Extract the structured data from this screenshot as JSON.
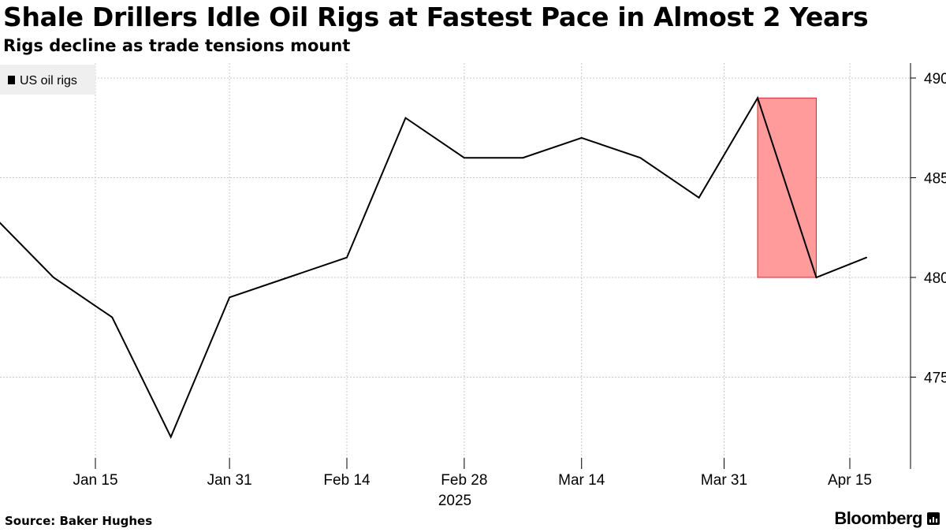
{
  "header": {
    "title": "Shale Drillers Idle Oil Rigs at Fastest Pace in Almost 2 Years",
    "subtitle": "Rigs decline as trade tensions mount"
  },
  "footer": {
    "source": "Source: Baker Hughes",
    "brand": "Bloomberg"
  },
  "chart_data": {
    "type": "line",
    "title": "Shale Drillers Idle Oil Rigs at Fastest Pace in Almost 2 Years",
    "subtitle": "Rigs decline as trade tensions mount",
    "xlabel": "2025",
    "ylabel": "",
    "x_range": [
      "2025-01-07",
      "2025-04-20"
    ],
    "ylim": [
      470.5,
      490.5
    ],
    "y_axis_side": "right",
    "grid": true,
    "legend": {
      "position": "top-left",
      "entries": [
        "US oil rigs"
      ]
    },
    "x_ticks": [
      {
        "date": "2025-01-15",
        "label": "Jan 15"
      },
      {
        "date": "2025-01-31",
        "label": "Jan 31"
      },
      {
        "date": "2025-02-14",
        "label": "Feb 14"
      },
      {
        "date": "2025-02-28",
        "label": "Feb 28"
      },
      {
        "date": "2025-03-14",
        "label": "Mar 14"
      },
      {
        "date": "2025-03-31",
        "label": "Mar 31"
      },
      {
        "date": "2025-04-15",
        "label": "Apr 15"
      }
    ],
    "y_ticks": [
      475,
      480,
      485,
      490
    ],
    "series": [
      {
        "name": "US oil rigs",
        "color": "#000000",
        "points": [
          {
            "x": "2025-01-03",
            "y": 483
          },
          {
            "x": "2025-01-10",
            "y": 480
          },
          {
            "x": "2025-01-17",
            "y": 478
          },
          {
            "x": "2025-01-24",
            "y": 472
          },
          {
            "x": "2025-01-31",
            "y": 479
          },
          {
            "x": "2025-02-07",
            "y": 480
          },
          {
            "x": "2025-02-14",
            "y": 481
          },
          {
            "x": "2025-02-21",
            "y": 488
          },
          {
            "x": "2025-02-28",
            "y": 486
          },
          {
            "x": "2025-03-07",
            "y": 486
          },
          {
            "x": "2025-03-14",
            "y": 487
          },
          {
            "x": "2025-03-21",
            "y": 486
          },
          {
            "x": "2025-03-28",
            "y": 484
          },
          {
            "x": "2025-04-04",
            "y": 489
          },
          {
            "x": "2025-04-11",
            "y": 480
          },
          {
            "x": "2025-04-17",
            "y": 481
          }
        ]
      }
    ],
    "highlight": {
      "x_start": "2025-04-04",
      "x_end": "2025-04-11",
      "y_low": 480,
      "y_high": 489,
      "fill": "#ff9b9b",
      "stroke": "#d9262b"
    }
  }
}
